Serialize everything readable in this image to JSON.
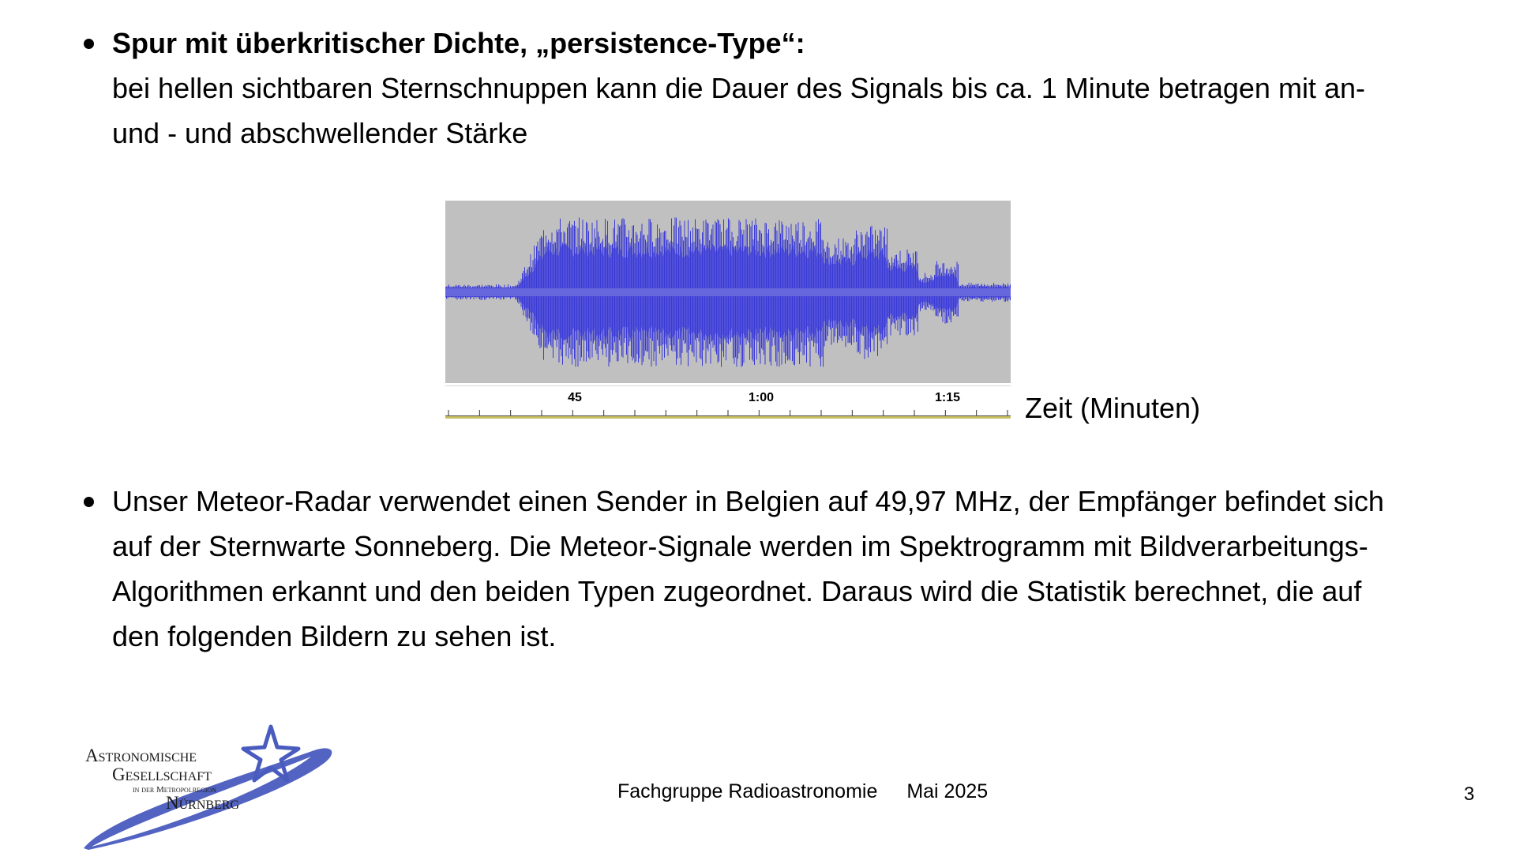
{
  "bullets": [
    {
      "title": "Spur mit überkritischer Dichte, „persistence-Type“:",
      "lines": [
        "bei hellen sichtbaren Sternschnuppen kann die Dauer des Signals bis ca. 1 Minute betragen mit an-",
        "und - und abschwellender Stärke"
      ]
    },
    {
      "lines": [
        "Unser Meteor-Radar verwendet einen Sender in Belgien auf 49,97 MHz, der Empfänger befindet sich",
        "auf der Sternwarte Sonneberg. Die Meteor-Signale werden im Spektrogramm mit Bildverarbeitungs-",
        "Algorithmen erkannt und den beiden Typen zugeordnet. Daraus wird die Statistik berechnet, die auf",
        "den folgenden Bildern zu sehen ist."
      ]
    }
  ],
  "figure": {
    "axis_label": "Zeit (Minuten)",
    "tick_labels": [
      "45",
      "1:00",
      "1:15"
    ],
    "waveform_color": "#3a3ad6",
    "waveform_fill_color": "#6666dd",
    "background_color": "#c0c0c0"
  },
  "logo": {
    "line1": "Astronomische",
    "line2": "Gesellschaft",
    "line3": "in der Metropolregion",
    "line4": "Nürnberg",
    "color": "#4a5bbf"
  },
  "footer": {
    "group": "Fachgruppe Radioastronomie",
    "date": "Mai 2025",
    "page_number": "3"
  }
}
